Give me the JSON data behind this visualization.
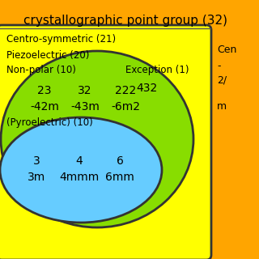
{
  "title": "crystallographic point group (32)",
  "bg_color": "#FFA500",
  "title_color": "#000000",
  "title_fontsize": 11,
  "yellow_box_color": "#FFFF00",
  "centrosym_label": "Centro-symmetric (21)",
  "green_ellipse_color": "#88DD00",
  "piezo_label": "Piezoelectric (20)",
  "nonpolar_label": "Non-polar (10)",
  "cyan_ellipse_color": "#66CCFF",
  "pyro_label": "(Pyroelectric) (10)",
  "exception_label": "Exception (1)",
  "exception_value": "432",
  "nonpolar_values_top": [
    "23",
    "32",
    "222"
  ],
  "nonpolar_values_bot": [
    "-42m",
    "-43m",
    "-6m2"
  ],
  "pyro_values_top": [
    "3",
    "4",
    "6"
  ],
  "pyro_values_bot": [
    "3m",
    "4mmm",
    "6mm"
  ],
  "right_lines": [
    "Cen",
    "-",
    "2/",
    "",
    "m"
  ]
}
